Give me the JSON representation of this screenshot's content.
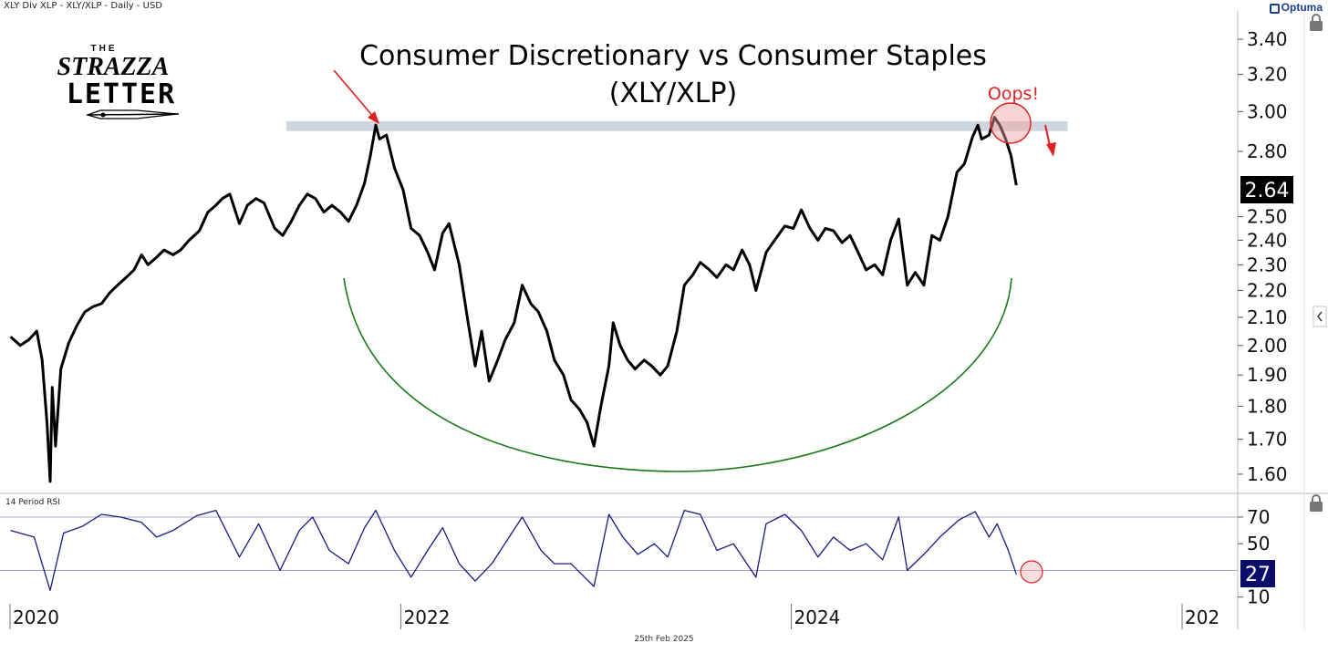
{
  "header": {
    "series_info": "XLY Div XLP - XLY/XLP - Daily - USD",
    "brand": "Optuma",
    "date": "25th Feb 2025"
  },
  "logo": {
    "line1": "THE",
    "line2": "STRAZZA",
    "line3": "LETTER"
  },
  "icons": [
    "lock-icon",
    "chevron-left-icon",
    "pen-nib-icon"
  ],
  "colors": {
    "price_line": "#000000",
    "rsi_line": "#1a1a80",
    "arc": "#1a7a1a",
    "annotation": "#e02020",
    "resistance_band": "#c9d1d9",
    "rsi_badge": "#0c0c6a"
  },
  "chart_data": [
    {
      "type": "line",
      "title": "Consumer Discretionary vs Consumer Staples",
      "subtitle": "(XLY/XLP)",
      "series": [
        {
          "name": "XLY/XLP",
          "points": [
            [
              "2020-01-02",
              2.03
            ],
            [
              "2020-01-20",
              2.0
            ],
            [
              "2020-02-05",
              2.02
            ],
            [
              "2020-02-20",
              2.05
            ],
            [
              "2020-03-01",
              1.95
            ],
            [
              "2020-03-10",
              1.75
            ],
            [
              "2020-03-16",
              1.58
            ],
            [
              "2020-03-20",
              1.86
            ],
            [
              "2020-03-26",
              1.68
            ],
            [
              "2020-04-05",
              1.92
            ],
            [
              "2020-04-20",
              2.01
            ],
            [
              "2020-05-05",
              2.07
            ],
            [
              "2020-05-20",
              2.12
            ],
            [
              "2020-06-05",
              2.14
            ],
            [
              "2020-06-20",
              2.15
            ],
            [
              "2020-07-05",
              2.19
            ],
            [
              "2020-07-20",
              2.22
            ],
            [
              "2020-08-05",
              2.25
            ],
            [
              "2020-08-20",
              2.28
            ],
            [
              "2020-09-03",
              2.34
            ],
            [
              "2020-09-15",
              2.3
            ],
            [
              "2020-10-01",
              2.33
            ],
            [
              "2020-10-15",
              2.36
            ],
            [
              "2020-11-01",
              2.34
            ],
            [
              "2020-11-15",
              2.36
            ],
            [
              "2020-12-01",
              2.4
            ],
            [
              "2020-12-20",
              2.44
            ],
            [
              "2021-01-05",
              2.52
            ],
            [
              "2021-01-20",
              2.55
            ],
            [
              "2021-02-01",
              2.58
            ],
            [
              "2021-02-15",
              2.6
            ],
            [
              "2021-03-05",
              2.47
            ],
            [
              "2021-03-20",
              2.55
            ],
            [
              "2021-04-05",
              2.58
            ],
            [
              "2021-04-20",
              2.56
            ],
            [
              "2021-05-10",
              2.45
            ],
            [
              "2021-05-25",
              2.42
            ],
            [
              "2021-06-10",
              2.48
            ],
            [
              "2021-06-25",
              2.55
            ],
            [
              "2021-07-10",
              2.6
            ],
            [
              "2021-07-25",
              2.58
            ],
            [
              "2021-08-10",
              2.52
            ],
            [
              "2021-08-25",
              2.55
            ],
            [
              "2021-09-10",
              2.52
            ],
            [
              "2021-09-25",
              2.48
            ],
            [
              "2021-10-10",
              2.55
            ],
            [
              "2021-10-25",
              2.65
            ],
            [
              "2021-11-05",
              2.78
            ],
            [
              "2021-11-15",
              2.93
            ],
            [
              "2021-11-22",
              2.86
            ],
            [
              "2021-12-05",
              2.88
            ],
            [
              "2021-12-20",
              2.72
            ],
            [
              "2022-01-05",
              2.62
            ],
            [
              "2022-01-20",
              2.45
            ],
            [
              "2022-02-05",
              2.42
            ],
            [
              "2022-02-20",
              2.35
            ],
            [
              "2022-03-05",
              2.28
            ],
            [
              "2022-03-20",
              2.43
            ],
            [
              "2022-04-01",
              2.47
            ],
            [
              "2022-04-20",
              2.3
            ],
            [
              "2022-05-05",
              2.1
            ],
            [
              "2022-05-20",
              1.93
            ],
            [
              "2022-06-01",
              2.05
            ],
            [
              "2022-06-15",
              1.88
            ],
            [
              "2022-07-01",
              1.95
            ],
            [
              "2022-07-15",
              2.02
            ],
            [
              "2022-08-01",
              2.08
            ],
            [
              "2022-08-16",
              2.22
            ],
            [
              "2022-09-01",
              2.15
            ],
            [
              "2022-09-15",
              2.12
            ],
            [
              "2022-10-01",
              2.05
            ],
            [
              "2022-10-15",
              1.95
            ],
            [
              "2022-11-01",
              1.9
            ],
            [
              "2022-11-15",
              1.82
            ],
            [
              "2022-12-01",
              1.79
            ],
            [
              "2022-12-15",
              1.75
            ],
            [
              "2022-12-28",
              1.68
            ],
            [
              "2023-01-10",
              1.8
            ],
            [
              "2023-01-25",
              1.93
            ],
            [
              "2023-02-02",
              2.08
            ],
            [
              "2023-02-15",
              2.0
            ],
            [
              "2023-03-01",
              1.95
            ],
            [
              "2023-03-15",
              1.92
            ],
            [
              "2023-04-01",
              1.95
            ],
            [
              "2023-04-15",
              1.93
            ],
            [
              "2023-05-01",
              1.9
            ],
            [
              "2023-05-15",
              1.93
            ],
            [
              "2023-06-01",
              2.05
            ],
            [
              "2023-06-15",
              2.22
            ],
            [
              "2023-07-01",
              2.26
            ],
            [
              "2023-07-15",
              2.31
            ],
            [
              "2023-08-01",
              2.28
            ],
            [
              "2023-08-15",
              2.25
            ],
            [
              "2023-09-01",
              2.3
            ],
            [
              "2023-09-15",
              2.28
            ],
            [
              "2023-10-01",
              2.36
            ],
            [
              "2023-10-15",
              2.3
            ],
            [
              "2023-10-27",
              2.2
            ],
            [
              "2023-11-15",
              2.35
            ],
            [
              "2023-12-01",
              2.4
            ],
            [
              "2023-12-20",
              2.46
            ],
            [
              "2024-01-05",
              2.45
            ],
            [
              "2024-01-20",
              2.53
            ],
            [
              "2024-02-05",
              2.45
            ],
            [
              "2024-02-20",
              2.4
            ],
            [
              "2024-03-05",
              2.45
            ],
            [
              "2024-03-20",
              2.44
            ],
            [
              "2024-04-05",
              2.39
            ],
            [
              "2024-04-20",
              2.42
            ],
            [
              "2024-05-05",
              2.35
            ],
            [
              "2024-05-20",
              2.28
            ],
            [
              "2024-06-05",
              2.3
            ],
            [
              "2024-06-20",
              2.26
            ],
            [
              "2024-07-05",
              2.4
            ],
            [
              "2024-07-20",
              2.49
            ],
            [
              "2024-08-05",
              2.22
            ],
            [
              "2024-08-20",
              2.27
            ],
            [
              "2024-09-05",
              2.22
            ],
            [
              "2024-09-20",
              2.42
            ],
            [
              "2024-10-05",
              2.4
            ],
            [
              "2024-10-20",
              2.5
            ],
            [
              "2024-11-06",
              2.7
            ],
            [
              "2024-11-20",
              2.74
            ],
            [
              "2024-12-05",
              2.87
            ],
            [
              "2024-12-15",
              2.93
            ],
            [
              "2024-12-22",
              2.86
            ],
            [
              "2025-01-05",
              2.88
            ],
            [
              "2025-01-15",
              2.97
            ],
            [
              "2025-01-25",
              2.93
            ],
            [
              "2025-02-05",
              2.86
            ],
            [
              "2025-02-15",
              2.78
            ],
            [
              "2025-02-25",
              2.64
            ]
          ]
        }
      ],
      "ylim": [
        1.55,
        3.56
      ],
      "yticks": [
        1.6,
        1.7,
        1.8,
        1.9,
        2.0,
        2.1,
        2.2,
        2.3,
        2.4,
        2.5,
        2.8,
        3.0,
        3.2,
        3.4
      ],
      "ytick_labels": [
        "1.60",
        "1.70",
        "1.80",
        "1.90",
        "2.00",
        "2.10",
        "2.20",
        "2.30",
        "2.40",
        "2.50",
        "2.80",
        "3.00",
        "3.20",
        "3.40"
      ],
      "y_scale": "log",
      "last_value_label": "2.64",
      "resistance_band": [
        2.9,
        2.95
      ],
      "annotations": [
        {
          "text": "Oops!",
          "x": "2025-01-15",
          "y": 3.13
        }
      ],
      "grid": false
    },
    {
      "type": "line",
      "title": "14 Period RSI",
      "series": [
        {
          "name": "RSI",
          "points": [
            [
              "2020-01-02",
              60
            ],
            [
              "2020-02-15",
              55
            ],
            [
              "2020-03-16",
              15
            ],
            [
              "2020-04-10",
              58
            ],
            [
              "2020-05-15",
              63
            ],
            [
              "2020-06-20",
              72
            ],
            [
              "2020-07-25",
              70
            ],
            [
              "2020-09-03",
              66
            ],
            [
              "2020-10-01",
              55
            ],
            [
              "2020-11-01",
              60
            ],
            [
              "2020-12-15",
              71
            ],
            [
              "2021-01-20",
              75
            ],
            [
              "2021-03-05",
              40
            ],
            [
              "2021-04-10",
              65
            ],
            [
              "2021-05-20",
              30
            ],
            [
              "2021-06-25",
              60
            ],
            [
              "2021-07-20",
              70
            ],
            [
              "2021-08-20",
              45
            ],
            [
              "2021-09-25",
              35
            ],
            [
              "2021-10-25",
              62
            ],
            [
              "2021-11-15",
              75
            ],
            [
              "2021-12-20",
              45
            ],
            [
              "2022-01-20",
              25
            ],
            [
              "2022-02-20",
              45
            ],
            [
              "2022-03-20",
              62
            ],
            [
              "2022-04-20",
              35
            ],
            [
              "2022-05-20",
              22
            ],
            [
              "2022-06-20",
              35
            ],
            [
              "2022-08-16",
              70
            ],
            [
              "2022-09-20",
              45
            ],
            [
              "2022-10-15",
              35
            ],
            [
              "2022-11-15",
              35
            ],
            [
              "2022-12-28",
              18
            ],
            [
              "2023-01-25",
              72
            ],
            [
              "2023-02-20",
              55
            ],
            [
              "2023-03-20",
              42
            ],
            [
              "2023-04-20",
              50
            ],
            [
              "2023-05-15",
              40
            ],
            [
              "2023-06-15",
              75
            ],
            [
              "2023-07-15",
              72
            ],
            [
              "2023-08-15",
              45
            ],
            [
              "2023-09-15",
              50
            ],
            [
              "2023-10-27",
              25
            ],
            [
              "2023-11-15",
              65
            ],
            [
              "2023-12-20",
              72
            ],
            [
              "2024-01-20",
              60
            ],
            [
              "2024-02-20",
              40
            ],
            [
              "2024-03-20",
              55
            ],
            [
              "2024-04-20",
              45
            ],
            [
              "2024-05-20",
              50
            ],
            [
              "2024-06-20",
              38
            ],
            [
              "2024-07-20",
              70
            ],
            [
              "2024-08-05",
              30
            ],
            [
              "2024-09-05",
              42
            ],
            [
              "2024-10-05",
              55
            ],
            [
              "2024-11-10",
              68
            ],
            [
              "2024-12-10",
              74
            ],
            [
              "2025-01-05",
              55
            ],
            [
              "2025-01-20",
              65
            ],
            [
              "2025-02-10",
              45
            ],
            [
              "2025-02-25",
              27
            ]
          ]
        }
      ],
      "ylim": [
        5,
        85
      ],
      "yticks": [
        10,
        50,
        70
      ],
      "ytick_labels": [
        "10",
        "50",
        "70"
      ],
      "reference_lines": [
        70,
        30
      ],
      "last_value_label": "27"
    }
  ],
  "x_axis": {
    "range": [
      "2019-12-20",
      "2026-04-15"
    ],
    "ticks": [
      {
        "date": "2020-01-01",
        "label": "2020"
      },
      {
        "date": "2022-01-01",
        "label": "2022"
      },
      {
        "date": "2024-01-01",
        "label": "2024"
      },
      {
        "date": "2026-01-01",
        "label": "202"
      }
    ]
  }
}
